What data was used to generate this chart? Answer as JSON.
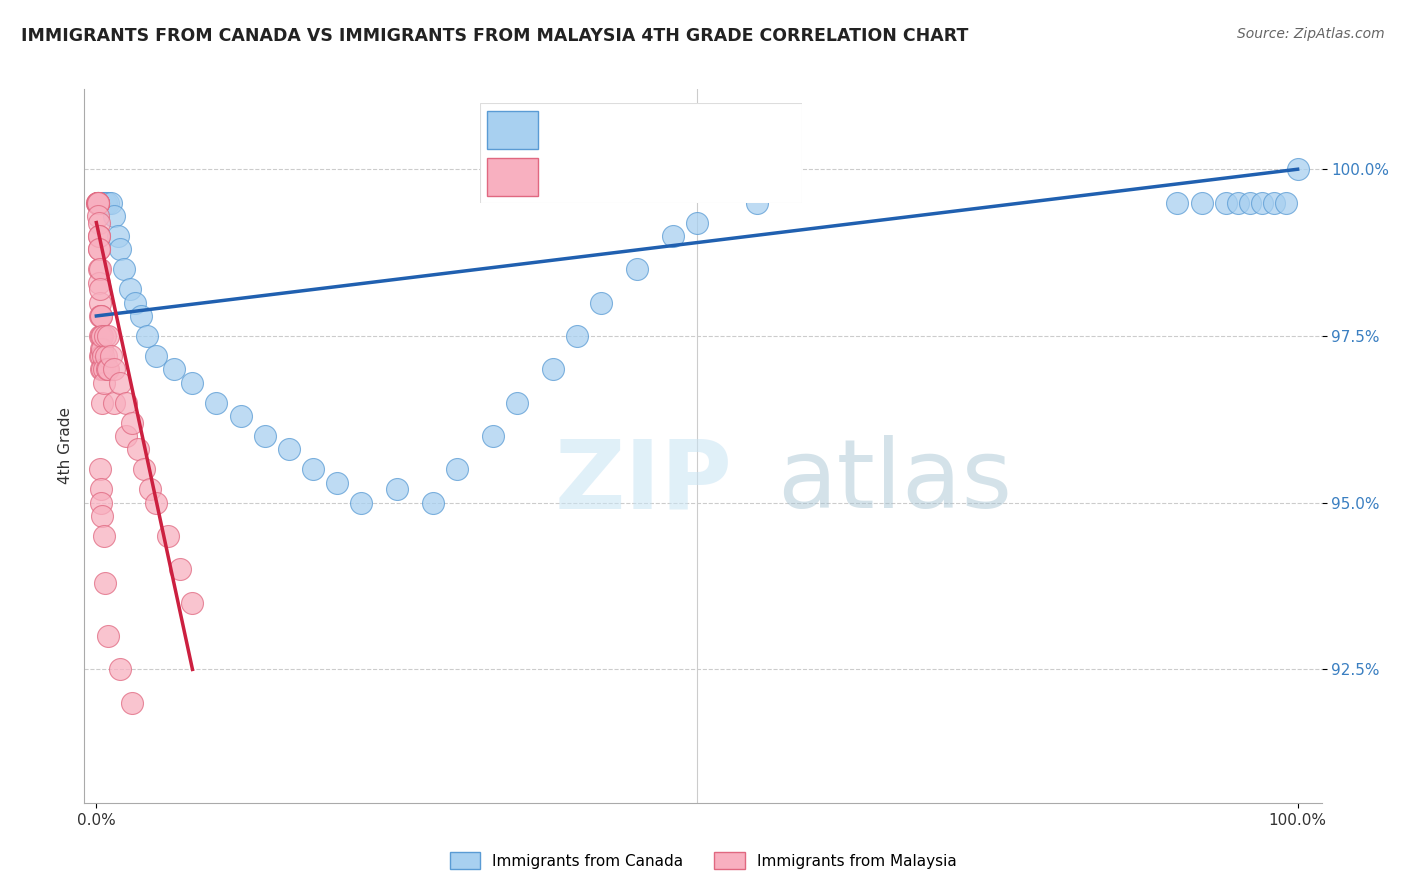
{
  "title": "IMMIGRANTS FROM CANADA VS IMMIGRANTS FROM MALAYSIA 4TH GRADE CORRELATION CHART",
  "source_text": "Source: ZipAtlas.com",
  "ylabel": "4th Grade",
  "xlim": [
    -1.0,
    102.0
  ],
  "ylim": [
    90.5,
    101.2
  ],
  "yticks": [
    92.5,
    95.0,
    97.5,
    100.0
  ],
  "xticks": [
    0.0,
    100.0
  ],
  "xticklabels": [
    "0.0%",
    "100.0%"
  ],
  "yticklabels": [
    "92.5%",
    "95.0%",
    "97.5%",
    "100.0%"
  ],
  "canada_color": "#A8D0F0",
  "malaysia_color": "#F8B0C0",
  "canada_edge": "#5A9BD4",
  "malaysia_edge": "#E06880",
  "trendline_canada_color": "#2060B0",
  "trendline_malaysia_color": "#CC2040",
  "legend_value_color": "#3A7FC1",
  "canada_x": [
    0.3,
    0.5,
    0.6,
    0.7,
    0.8,
    1.0,
    1.2,
    1.5,
    1.8,
    2.0,
    2.3,
    2.8,
    3.2,
    3.7,
    4.2,
    5.0,
    6.5,
    8.0,
    10.0,
    12.0,
    14.0,
    16.0,
    18.0,
    20.0,
    22.0,
    25.0,
    28.0,
    30.0,
    33.0,
    35.0,
    38.0,
    40.0,
    42.0,
    45.0,
    48.0,
    50.0,
    55.0,
    90.0,
    92.0,
    94.0,
    95.0,
    96.0,
    97.0,
    98.0,
    99.0,
    100.0
  ],
  "canada_y": [
    99.5,
    99.5,
    99.5,
    99.5,
    99.5,
    99.5,
    99.5,
    99.3,
    99.0,
    98.8,
    98.5,
    98.2,
    98.0,
    97.8,
    97.5,
    97.2,
    97.0,
    96.8,
    96.5,
    96.3,
    96.0,
    95.8,
    95.5,
    95.3,
    95.0,
    95.2,
    95.0,
    95.5,
    96.0,
    96.5,
    97.0,
    97.5,
    98.0,
    98.5,
    99.0,
    99.2,
    99.5,
    99.5,
    99.5,
    99.5,
    99.5,
    99.5,
    99.5,
    99.5,
    99.5,
    100.0
  ],
  "malaysia_x": [
    0.05,
    0.08,
    0.1,
    0.1,
    0.12,
    0.12,
    0.15,
    0.15,
    0.15,
    0.18,
    0.2,
    0.2,
    0.2,
    0.22,
    0.25,
    0.25,
    0.28,
    0.28,
    0.3,
    0.3,
    0.32,
    0.32,
    0.35,
    0.35,
    0.38,
    0.4,
    0.4,
    0.42,
    0.45,
    0.5,
    0.5,
    0.5,
    0.55,
    0.6,
    0.6,
    0.7,
    0.8,
    0.9,
    1.0,
    1.0,
    1.2,
    1.5,
    1.5,
    2.0,
    2.5,
    2.5,
    3.0,
    3.5,
    4.0,
    4.5,
    5.0,
    6.0,
    7.0,
    8.0,
    0.3,
    0.35,
    0.4,
    0.5,
    0.6,
    0.7,
    1.0,
    2.0,
    3.0
  ],
  "malaysia_y": [
    99.5,
    99.5,
    99.5,
    99.5,
    99.5,
    99.5,
    99.5,
    99.5,
    99.3,
    99.2,
    99.0,
    98.8,
    98.5,
    99.0,
    98.8,
    98.3,
    98.5,
    98.0,
    98.2,
    97.8,
    97.5,
    97.2,
    97.8,
    97.3,
    97.5,
    97.8,
    97.2,
    97.0,
    97.3,
    97.5,
    97.0,
    96.5,
    97.2,
    97.0,
    96.8,
    97.5,
    97.2,
    97.0,
    97.5,
    97.0,
    97.2,
    97.0,
    96.5,
    96.8,
    96.5,
    96.0,
    96.2,
    95.8,
    95.5,
    95.2,
    95.0,
    94.5,
    94.0,
    93.5,
    95.5,
    95.2,
    95.0,
    94.8,
    94.5,
    93.8,
    93.0,
    92.5,
    92.0
  ],
  "canada_trendline_x": [
    0.0,
    100.0
  ],
  "canada_trendline_y": [
    97.8,
    100.0
  ],
  "malaysia_trendline_x": [
    0.0,
    8.0
  ],
  "malaysia_trendline_y": [
    99.2,
    92.5
  ]
}
